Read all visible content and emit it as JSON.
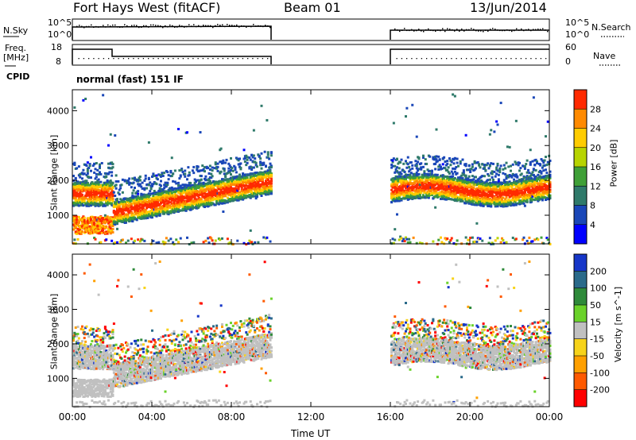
{
  "header": {
    "title": "Fort Hays West (fitACF)",
    "beam": "Beam 01",
    "date": "13/Jun/2014"
  },
  "params": {
    "nsky_label": "N.Sky",
    "nsearch_label": "N.Search",
    "freq_label_1": "Freq.",
    "freq_label_2": "[MHz]",
    "nave_label": "Nave",
    "cpid_label": "CPID",
    "cpid_value": "normal (fast) 151 IF",
    "nsky_ticks": [
      "10^5",
      "10^0"
    ],
    "nsearch_ticks": [
      "10^5",
      "10^0"
    ],
    "freq_ticks": [
      "18",
      "8"
    ],
    "nave_ticks": [
      "60",
      "0"
    ]
  },
  "colors": {
    "scale": [
      "#0000ff",
      "#1a47b8",
      "#2f7a6a",
      "#3fa037",
      "#b7d400",
      "#ffcc00",
      "#ff8a00",
      "#ff2a00"
    ],
    "velocity": [
      "#1636c8",
      "#2a6a8a",
      "#2e8a3a",
      "#6ad22a",
      "#c0c0c0",
      "#f7d31a",
      "#ffa000",
      "#ff5a00",
      "#ff0000"
    ]
  },
  "chart_data": [
    {
      "type": "heatmap",
      "quantity": "power",
      "ylabel": "Slant Range [km]",
      "xlabel": "",
      "xlim": [
        "00:00",
        "00:00"
      ],
      "ylim": [
        180,
        4600
      ],
      "x_ticks": [
        "00:00",
        "04:00",
        "08:00",
        "12:00",
        "16:00",
        "20:00",
        "00:00"
      ],
      "y_ticks": [
        1000,
        2000,
        3000,
        4000
      ],
      "colorbar": {
        "label": "Power [dB]",
        "ticks": [
          4,
          8,
          12,
          16,
          20,
          24,
          28
        ]
      },
      "data_gap_hours": [
        10,
        16
      ]
    },
    {
      "type": "heatmap",
      "quantity": "velocity",
      "ylabel": "Slant Range [km]",
      "xlabel": "Time UT",
      "xlim": [
        "00:00",
        "00:00"
      ],
      "ylim": [
        180,
        4600
      ],
      "x_ticks": [
        "00:00",
        "04:00",
        "08:00",
        "12:00",
        "16:00",
        "20:00",
        "00:00"
      ],
      "y_ticks": [
        1000,
        2000,
        3000,
        4000
      ],
      "colorbar": {
        "label": "Velocity [m s^-1]",
        "ticks": [
          200,
          100,
          50,
          15,
          -15,
          -50,
          -100,
          -200
        ]
      },
      "data_gap_hours": [
        10,
        16
      ]
    }
  ]
}
